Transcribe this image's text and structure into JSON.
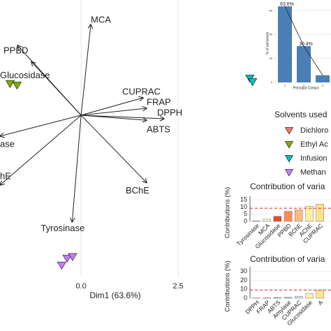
{
  "chart_data": [
    {
      "type": "biplot",
      "x_label": "Dim1 (63.6%)",
      "xlim": [
        -2.09,
        4.57
      ],
      "ylim": [
        -4.14,
        2.97
      ],
      "xticks": [
        {
          "value": 0,
          "label": "0.0"
        },
        2.5
      ],
      "grid": true,
      "variables": [
        {
          "name": "MCA",
          "x": 0.25,
          "y": 2.34
        },
        {
          "name": "CUPRAC",
          "x": 1.6,
          "y": 0.45
        },
        {
          "name": "FRAP",
          "x": 1.69,
          "y": 0.18
        },
        {
          "name": "DPPH",
          "x": 2.14,
          "y": -0.09
        },
        {
          "name": "ABTS",
          "x": 1.69,
          "y": -0.13
        },
        {
          "name": "BChE",
          "x": 1.69,
          "y": -1.74
        },
        {
          "name": "Tyrosinase",
          "x": -0.23,
          "y": -2.75
        },
        {
          "name": "hE",
          "x": -2.09,
          "y": -1.8
        },
        {
          "name": "ase",
          "x": -2.09,
          "y": -0.54
        },
        {
          "name": "PPBD",
          "x": -1.64,
          "y": 1.8
        },
        {
          "name": "Glucosidase",
          "x": -1.28,
          "y": 1.38
        }
      ],
      "legend": {
        "title": "Solvents used"
      },
      "series": [
        {
          "name": "Dichloro",
          "color": "#f8766d",
          "x": [],
          "y": []
        },
        {
          "name": "Ethyl Ac",
          "color": "#7cae00",
          "x": [
            -1.83,
            -1.65
          ],
          "y": [
            0.81,
            0.77
          ]
        },
        {
          "name": "Infusion",
          "color": "#00bfc4",
          "x": [
            4.35,
            4.42
          ],
          "y": [
            0.95,
            0.86
          ]
        },
        {
          "name": "Methan",
          "color": "#c77cff",
          "x": [
            -0.5,
            -0.36,
            -0.22
          ],
          "y": [
            -3.87,
            -3.69,
            -3.65
          ]
        }
      ]
    },
    {
      "type": "scree",
      "y_label": "% of variances",
      "x_label": "Principal Compo",
      "categories": [
        "1",
        "2",
        "3"
      ],
      "values": [
        63.6,
        30.4,
        6
      ],
      "value_labels": [
        "63.6%",
        "30.4%",
        null
      ],
      "ylim": [
        0,
        66
      ],
      "yticks": [
        0,
        20,
        40,
        60
      ],
      "color": "#4a7fb5"
    },
    {
      "type": "bar",
      "title": "Contribution of varia",
      "y_label": "Contributions (%)",
      "categories": [
        "Tyrosinase",
        "MCA",
        "Glucosidase",
        "PPBD",
        "BChE",
        "AChE",
        "CUPRAC"
      ],
      "values": [
        0.3,
        1.5,
        3.5,
        7,
        8,
        10.5,
        12
      ],
      "colors": [
        "#a6d5e8",
        "#f7f3c6",
        "#e34a33",
        "#fc8d59",
        "#fdbb84",
        "#fef0a0",
        "#fee08b"
      ],
      "reference": 9.1,
      "ylim": [
        0,
        16
      ],
      "yticks": [
        0,
        5,
        10,
        15
      ]
    },
    {
      "type": "bar",
      "title": "Contribution of varia",
      "y_label": "Contributions (%)",
      "categories": [
        "DPPH",
        "FRAP",
        "ABTS",
        "Amylase",
        "CUPRAC",
        "Glucosidase",
        "A"
      ],
      "values": [
        0.2,
        0.3,
        0.5,
        1,
        2,
        5,
        9
      ],
      "colors": [
        "#3b82c4",
        "#4a90d0",
        "#6aaed6",
        "#9ecae1",
        "#cbe6f1",
        "#fff2b0",
        "#fee391"
      ],
      "reference": 9.1,
      "ylim": [
        0,
        33
      ],
      "yticks": [
        0,
        10,
        20,
        30
      ]
    }
  ]
}
